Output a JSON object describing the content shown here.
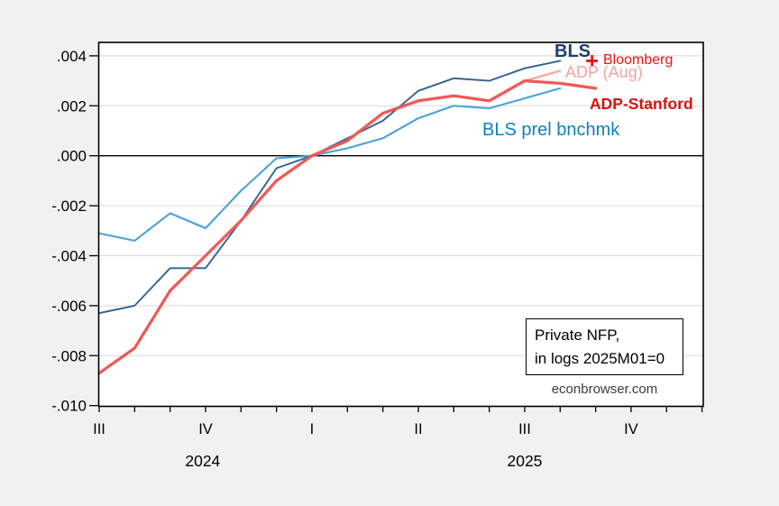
{
  "chart_data": {
    "type": "line",
    "title": "",
    "note_box_line1": "Private NFP,",
    "note_box_line2": "in logs 2025M01=0",
    "watermark": "econbrowser.com",
    "xlabel": "",
    "ylabel": "",
    "x_months": [
      "2024M07",
      "2024M08",
      "2024M09",
      "2024M10",
      "2024M11",
      "2024M12",
      "2025M01",
      "2025M02",
      "2025M03",
      "2025M04",
      "2025M05",
      "2025M06",
      "2025M07",
      "2025M08",
      "2025M09",
      "2025M10",
      "2025M11",
      "2025M12"
    ],
    "ylim": [
      -0.01,
      0.00455
    ],
    "grid": true,
    "y_ticks": [
      {
        "label": ".004",
        "value": 0.004
      },
      {
        "label": ".002",
        "value": 0.002
      },
      {
        "label": ".000",
        "value": 0.0
      },
      {
        "label": "-.002",
        "value": -0.002
      },
      {
        "label": "-.004",
        "value": -0.004
      },
      {
        "label": "-.006",
        "value": -0.006
      },
      {
        "label": "-.008",
        "value": -0.008
      },
      {
        "label": "-.010",
        "value": -0.01
      }
    ],
    "x_quarter_ticks": [
      {
        "label": "III",
        "month_index": 0
      },
      {
        "label": "IV",
        "month_index": 3
      },
      {
        "label": "I",
        "month_index": 6
      },
      {
        "label": "II",
        "month_index": 9
      },
      {
        "label": "III",
        "month_index": 12
      },
      {
        "label": "IV",
        "month_index": 15
      }
    ],
    "year_labels": [
      {
        "label": "2024",
        "month_index": 2.92
      },
      {
        "label": "2025",
        "month_index": 12.0
      }
    ],
    "series": [
      {
        "name": "BLS prel bnchmk",
        "color": "#4aa2d9",
        "width": 2.1,
        "start_index": 0,
        "values": [
          -0.0031,
          -0.0034,
          -0.0023,
          -0.0029,
          -0.0014,
          -0.0001,
          0.0,
          0.0003,
          0.0007,
          0.0015,
          0.002,
          0.0019,
          0.0023,
          0.0027
        ]
      },
      {
        "name": "BLS",
        "color": "#336292",
        "width": 1.9,
        "start_index": 0,
        "values": [
          -0.0063,
          -0.006,
          -0.0045,
          -0.0045,
          -0.0026,
          -0.0005,
          0.0,
          0.0007,
          0.0014,
          0.0026,
          0.0031,
          0.003,
          0.0035,
          0.0038
        ]
      },
      {
        "name": "ADP (Aug)",
        "color": "#f5a8a6",
        "width": 2.3,
        "start_index": 11,
        "values": [
          0.0022,
          0.003,
          0.0034
        ]
      },
      {
        "name": "ADP-Stanford",
        "color": "#ee5a57",
        "width": 3.3,
        "start_index": 0,
        "values": [
          -0.0087,
          -0.0077,
          -0.0054,
          -0.004,
          -0.0026,
          -0.001,
          0.0,
          0.0006,
          0.0017,
          0.0022,
          0.0024,
          0.0022,
          0.003,
          0.0029,
          0.0027
        ]
      }
    ],
    "markers": [
      {
        "name": "Bloomberg",
        "shape": "plus",
        "color": "#e8150f",
        "month_index": 14,
        "value": 0.0038
      }
    ],
    "annotations": {
      "bls": {
        "text": "BLS",
        "color": "#1c3e6e"
      },
      "bloomberg": {
        "text": "Bloomberg",
        "color": "#e8150f"
      },
      "adp_aug": {
        "text": "ADP (Aug)",
        "color": "#f3a3a2"
      },
      "adp_stanford": {
        "text": "ADP-Stanford",
        "color": "#dd0f0f"
      },
      "bls_prel": {
        "text": "BLS prel bnchmk",
        "color": "#0e81c4"
      }
    },
    "colors": {
      "background": "#f1f1f1",
      "plot_background": "#ffffff",
      "gridline": "#d9d9d9",
      "axis": "#000000"
    },
    "legend_position": "in-plot text labels"
  }
}
